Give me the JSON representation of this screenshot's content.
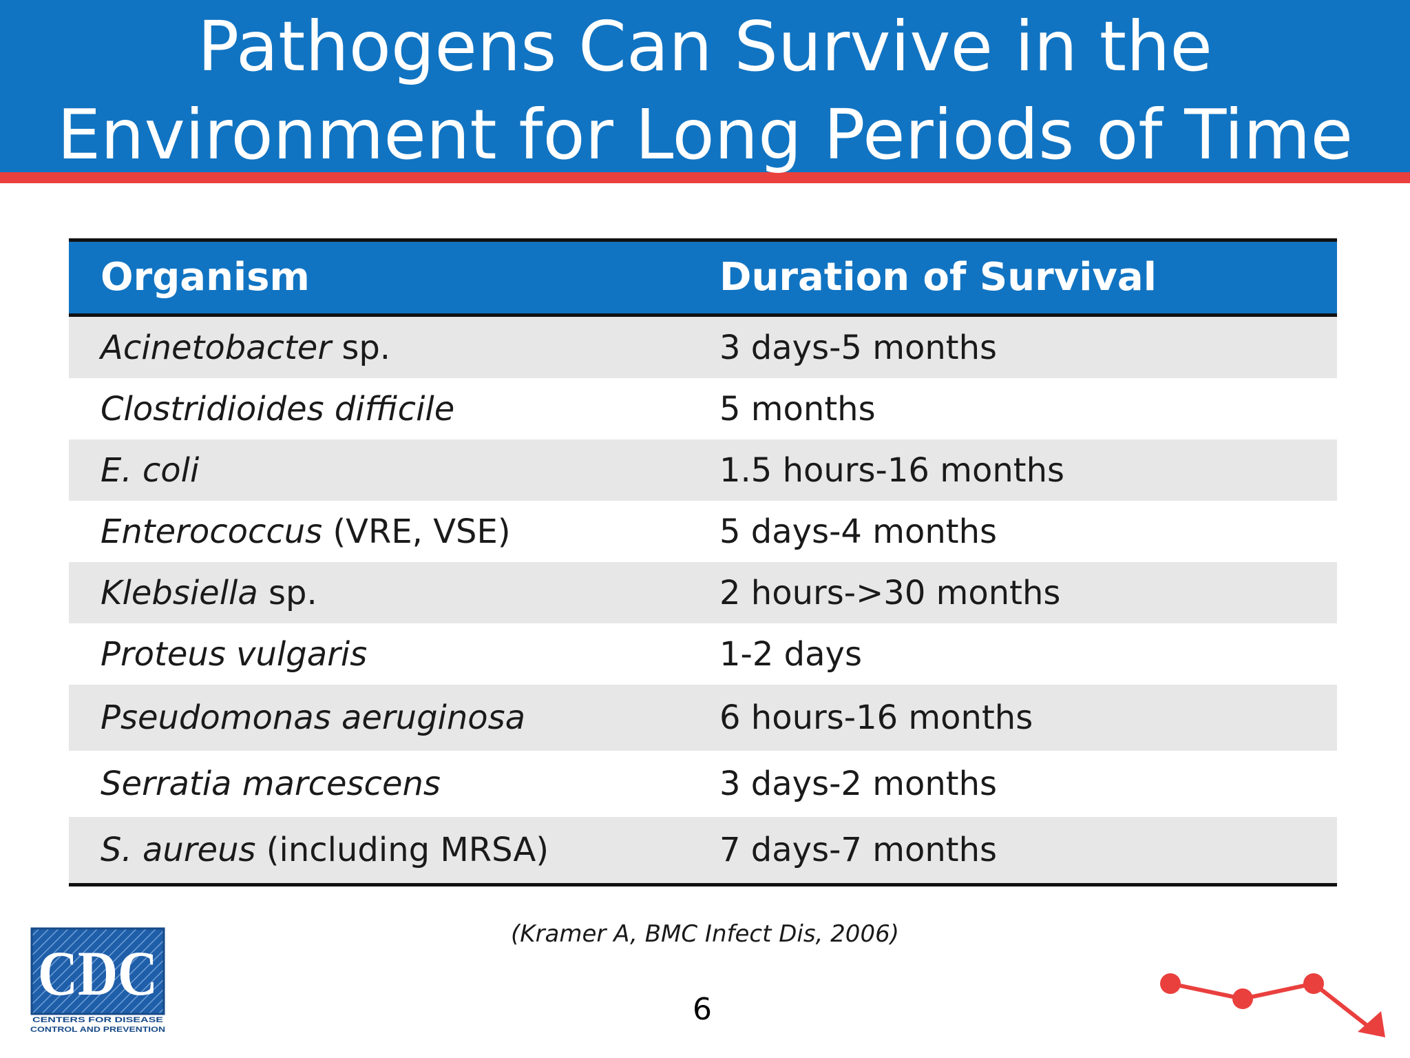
{
  "title": {
    "line1": "Pathogens Can Survive in the",
    "line2": "Environment for Long Periods of Time"
  },
  "table": {
    "headers": [
      "Organism",
      "Duration of Survival"
    ],
    "rows": [
      {
        "organism_italic": "Acinetobacter",
        "organism_rest": " sp.",
        "duration": "3 days-5 months"
      },
      {
        "organism_italic": "Clostridioides difficile",
        "organism_rest": "",
        "duration": "5 months"
      },
      {
        "organism_italic": "E. coli",
        "organism_rest": "",
        "duration": "1.5 hours-16 months"
      },
      {
        "organism_italic": "Enterococcus",
        "organism_rest": " (VRE, VSE)",
        "duration": "5 days-4 months"
      },
      {
        "organism_italic": "Klebsiella",
        "organism_rest": " sp.",
        "duration": "2 hours->30 months"
      },
      {
        "organism_italic": "Proteus vulgaris",
        "organism_rest": "",
        "duration": "1-2 days"
      },
      {
        "organism_italic": "Pseudomonas aeruginosa",
        "organism_rest": "",
        "duration": "6 hours-16 months"
      },
      {
        "organism_italic": "Serratia marcescens",
        "organism_rest": "",
        "duration": "3 days-2 months"
      },
      {
        "organism_italic": "S. aureus",
        "organism_rest": " (including MRSA)",
        "duration": "7 days-7 months"
      }
    ]
  },
  "citation": "(Kramer A, BMC Infect Dis, 2006)",
  "page_number": "6",
  "logo": {
    "letters": "CDC",
    "tagline1": "CENTERS FOR DISEASE",
    "tagline2": "CONTROL AND PREVENTION"
  },
  "colors": {
    "brand_blue": "#1174c2",
    "accent_red": "#e9403e",
    "row_shade": "#e7e7e8"
  },
  "icons": [
    "cdc-logo",
    "declining-trend-graphic"
  ]
}
